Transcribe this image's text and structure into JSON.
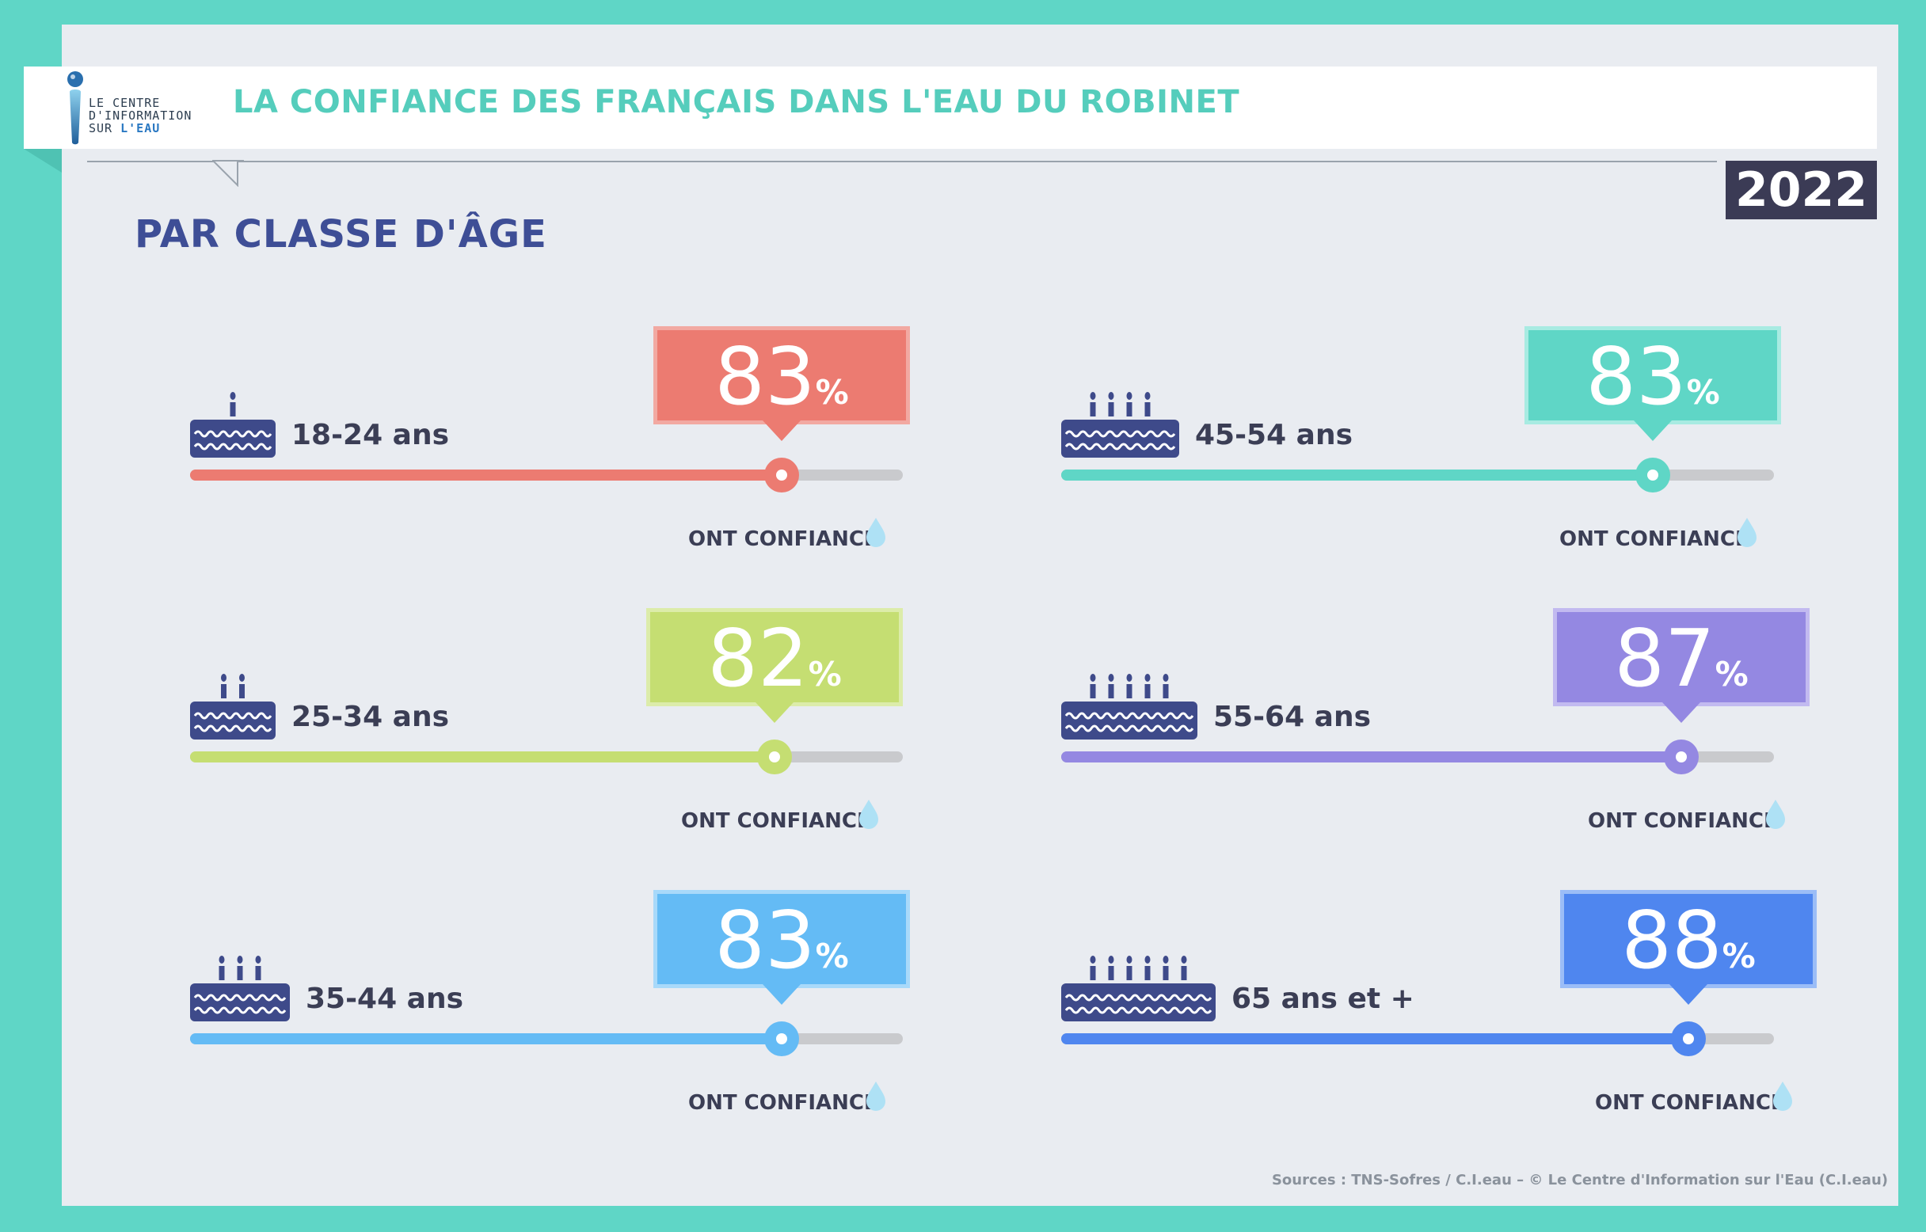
{
  "header": {
    "logo_line1": "LE CENTRE",
    "logo_line2": "D'INFORMATION",
    "logo_line3a": "SUR ",
    "logo_line3b": "L'EAU",
    "title": "LA CONFIANCE DES FRANÇAIS DANS L'EAU DU ROBINET",
    "year": "2022"
  },
  "subtitle": "PAR CLASSE D'ÂGE",
  "confiance_label": "ONT CONFIANCE",
  "percent_sign": "%",
  "sources": "Sources : TNS-Sofres / C.I.eau – © Le Centre d'Information sur l'Eau (C.I.eau)",
  "colors": {
    "teal_border": "#5fd6c6",
    "title_teal": "#55cdbc",
    "subtitle_blue": "#3e4e96",
    "cake": "#3e4a8a",
    "track": "#c9cacd",
    "drop": "#aee1f5"
  },
  "items": [
    {
      "age": "18-24 ans",
      "value": "83",
      "candles": 1,
      "color": "#ec7b71",
      "border": "#f2a9a2"
    },
    {
      "age": "45-54 ans",
      "value": "83",
      "candles": 4,
      "color": "#5fd6c6",
      "border": "#a8ebe2"
    },
    {
      "age": "25-34 ans",
      "value": "82",
      "candles": 2,
      "color": "#c5de72",
      "border": "#dcecaa"
    },
    {
      "age": "55-64 ans",
      "value": "87",
      "candles": 5,
      "color": "#9488e2",
      "border": "#c2baf0"
    },
    {
      "age": "35-44 ans",
      "value": "83",
      "candles": 3,
      "color": "#64bbf5",
      "border": "#a8d9fa"
    },
    {
      "age": "65 ans et +",
      "value": "88",
      "candles": 6,
      "color": "#4f86ef",
      "border": "#9bbdf7"
    }
  ],
  "chart_data": {
    "type": "bar",
    "title": "LA CONFIANCE DES FRANÇAIS DANS L'EAU DU ROBINET",
    "subtitle": "PAR CLASSE D'ÂGE",
    "categories": [
      "18-24 ans",
      "25-34 ans",
      "35-44 ans",
      "45-54 ans",
      "55-64 ans",
      "65 ans et +"
    ],
    "values": [
      83,
      82,
      83,
      83,
      87,
      88
    ],
    "unit": "%",
    "ylim": [
      0,
      100
    ]
  }
}
